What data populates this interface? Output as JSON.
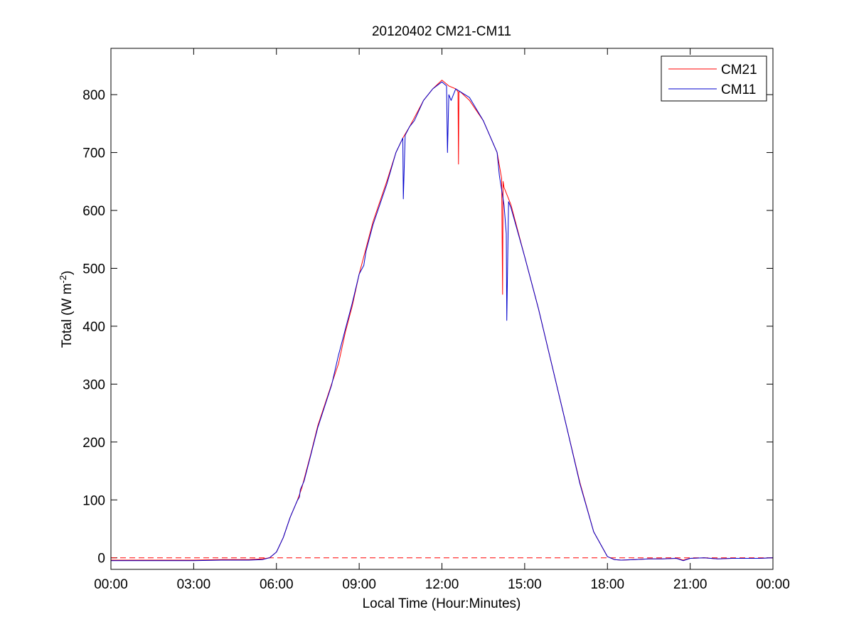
{
  "figure": {
    "background": "#ffffff"
  },
  "chart_data": {
    "type": "line",
    "title": "20120402 CM21-CM11",
    "xlabel": "Local Time (Hour:Minutes)",
    "ylabel": "Total (W m-2)",
    "ylabel_parts": {
      "main": "Total (W m",
      "sup": "-2",
      "end": ")"
    },
    "xlim": [
      "00:00",
      "24:00"
    ],
    "ylim": [
      -20,
      880
    ],
    "xticks": [
      "00:00",
      "03:00",
      "06:00",
      "09:00",
      "12:00",
      "15:00",
      "18:00",
      "21:00",
      "00:00"
    ],
    "yticks": [
      0,
      100,
      200,
      300,
      400,
      500,
      600,
      700,
      800
    ],
    "grid": false,
    "legend_position": "top-right",
    "reference_line": {
      "y": 0,
      "style": "dashed",
      "color": "#ff0000"
    },
    "series": [
      {
        "name": "CM21",
        "color": "#ff0000",
        "x": [
          "00:00",
          "01:00",
          "02:00",
          "03:00",
          "04:00",
          "05:00",
          "05:30",
          "05:45",
          "06:00",
          "06:15",
          "06:30",
          "06:45",
          "06:55",
          "07:00",
          "07:15",
          "07:30",
          "08:00",
          "08:15",
          "08:30",
          "08:45",
          "09:00",
          "09:30",
          "10:00",
          "10:20",
          "10:35",
          "10:50",
          "11:00",
          "11:20",
          "11:40",
          "12:00",
          "12:15",
          "12:30",
          "12:35",
          "12:36",
          "12:37",
          "12:40",
          "13:00",
          "13:30",
          "14:00",
          "14:10",
          "14:12",
          "14:13",
          "14:15",
          "14:30",
          "15:00",
          "15:30",
          "16:00",
          "16:30",
          "17:00",
          "17:30",
          "18:00",
          "18:15",
          "18:30",
          "19:00",
          "19:30",
          "20:00",
          "20:30",
          "20:45",
          "21:00",
          "21:30",
          "22:00",
          "22:30",
          "23:00",
          "23:30",
          "24:00"
        ],
        "y": [
          -4,
          -4,
          -4,
          -4,
          -3,
          -3,
          -2,
          0,
          10,
          35,
          70,
          98,
          120,
          135,
          180,
          228,
          300,
          335,
          390,
          435,
          490,
          580,
          650,
          700,
          725,
          745,
          760,
          790,
          810,
          825,
          815,
          810,
          805,
          680,
          805,
          805,
          790,
          755,
          700,
          655,
          455,
          650,
          640,
          610,
          520,
          430,
          330,
          230,
          130,
          45,
          2,
          -3,
          -4,
          -3,
          -2,
          -2,
          -1,
          -4,
          -1,
          0,
          -2,
          -1,
          -1,
          -1,
          0
        ]
      },
      {
        "name": "CM11",
        "color": "#0000cc",
        "x": [
          "00:00",
          "01:00",
          "02:00",
          "03:00",
          "04:00",
          "05:00",
          "05:30",
          "05:45",
          "06:00",
          "06:15",
          "06:30",
          "06:45",
          "06:50",
          "06:52",
          "07:00",
          "07:15",
          "07:30",
          "08:00",
          "08:15",
          "08:25",
          "08:30",
          "08:45",
          "09:00",
          "09:10",
          "09:15",
          "09:30",
          "10:00",
          "10:20",
          "10:35",
          "10:36",
          "10:40",
          "10:50",
          "11:00",
          "11:20",
          "11:40",
          "12:00",
          "12:10",
          "12:12",
          "12:15",
          "12:20",
          "12:30",
          "13:00",
          "13:30",
          "14:00",
          "14:05",
          "14:15",
          "14:20",
          "14:21",
          "14:25",
          "14:30",
          "15:00",
          "15:30",
          "16:00",
          "16:30",
          "17:00",
          "17:30",
          "18:00",
          "18:15",
          "18:30",
          "19:00",
          "19:30",
          "20:00",
          "20:30",
          "20:45",
          "21:00",
          "21:30",
          "22:00",
          "22:30",
          "23:00",
          "23:30",
          "24:00"
        ],
        "y": [
          -5,
          -5,
          -5,
          -5,
          -4,
          -4,
          -3,
          0,
          10,
          35,
          70,
          98,
          105,
          118,
          132,
          178,
          225,
          298,
          350,
          380,
          395,
          440,
          490,
          505,
          530,
          575,
          645,
          700,
          725,
          620,
          730,
          745,
          755,
          790,
          810,
          822,
          815,
          700,
          800,
          790,
          810,
          795,
          755,
          700,
          660,
          610,
          560,
          410,
          615,
          605,
          520,
          430,
          330,
          230,
          128,
          45,
          2,
          -3,
          -4,
          -3,
          -2,
          -2,
          -1,
          -5,
          -1,
          0,
          -2,
          -1,
          -1,
          -1,
          0
        ]
      }
    ]
  }
}
